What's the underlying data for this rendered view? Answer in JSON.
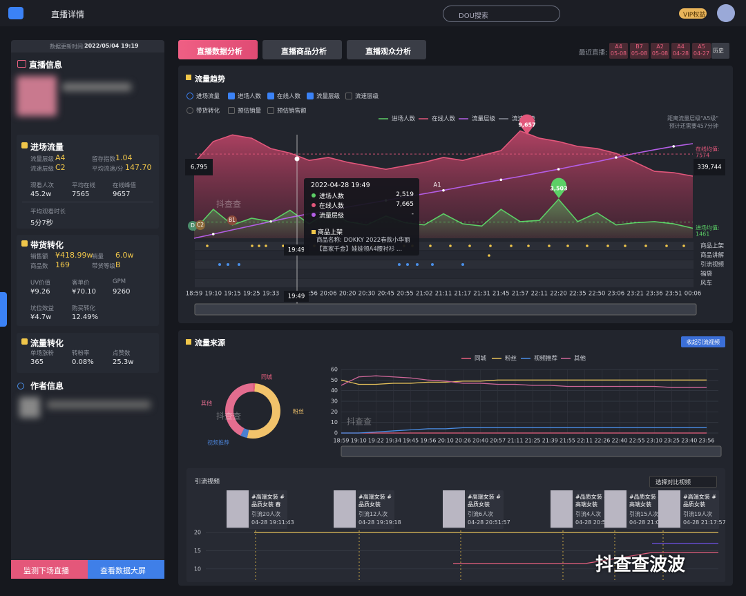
{
  "header": {
    "title": "直播详情",
    "search": "DOU搜索",
    "vip": "VIP权益"
  },
  "sidebar": {
    "update_label": "数据更新时间:",
    "update_time": "2022/05/04 19:19",
    "live_title": "直播信息",
    "traffic": {
      "title": "进场流量",
      "metrics": [
        {
          "label": "流量层级",
          "value": "A4"
        },
        {
          "label": "留存指数",
          "value": "1.04"
        },
        {
          "label": "流速层级",
          "value": "C2"
        },
        {
          "label": "平均流速/分",
          "value": "147.70"
        }
      ],
      "stats": [
        {
          "label": "观看人次",
          "value": "45.2w"
        },
        {
          "label": "平均在线",
          "value": "7565"
        },
        {
          "label": "在线峰值",
          "value": "9657"
        },
        {
          "label": "平均观看时长",
          "value": "5分7秒"
        }
      ]
    },
    "sales": {
      "title": "带货转化",
      "metrics": [
        {
          "label": "销售额",
          "value": "¥418.99w"
        },
        {
          "label": "销量",
          "value": "6.0w"
        },
        {
          "label": "商品数",
          "value": "169"
        },
        {
          "label": "带货等级",
          "value": "B"
        }
      ],
      "stats": [
        {
          "label": "UV价值",
          "value": "¥9.26"
        },
        {
          "label": "客单价",
          "value": "¥70.10"
        },
        {
          "label": "GPM",
          "value": "9260"
        },
        {
          "label": "坑位效益",
          "value": "¥4.7w"
        },
        {
          "label": "购买转化",
          "value": "12.49%"
        }
      ]
    },
    "conversion": {
      "title": "流量转化",
      "stats": [
        {
          "label": "单场涨粉",
          "value": "365"
        },
        {
          "label": "转粉率",
          "value": "0.08%"
        },
        {
          "label": "点赞数",
          "value": "25.3w"
        }
      ]
    },
    "author_title": "作者信息",
    "buttons": [
      "监测下场直播",
      "查看数据大屏"
    ]
  },
  "tabs": [
    "直播数据分析",
    "直播商品分析",
    "直播观众分析"
  ],
  "recent": {
    "label": "最近直播:",
    "items": [
      {
        "level": "A4",
        "date": "05-08"
      },
      {
        "level": "B7",
        "date": "05-08"
      },
      {
        "level": "A2",
        "date": "05-08"
      },
      {
        "level": "A4",
        "date": "04-28"
      },
      {
        "level": "A5",
        "date": "04-27"
      }
    ],
    "history": "历史"
  },
  "trend": {
    "title": "流量趋势",
    "options": [
      "进场流量",
      "进场人数",
      "在线人数",
      "流量层级",
      "流速层级",
      "带货转化",
      "预估销量",
      "预估销售额"
    ],
    "checked": [
      true,
      true,
      true,
      true,
      false,
      false,
      false,
      false
    ],
    "hint": [
      "距离流量层级\"A5级\"",
      "预计还需要457分钟"
    ],
    "chart": {
      "type": "line",
      "categories": [
        "18:59",
        "19:10",
        "19:15",
        "19:25",
        "19:33",
        null,
        "19:56",
        "20:06",
        "20:20",
        "20:30",
        "20:45",
        "20:55",
        "21:02",
        "21:11",
        "21:17",
        "21:31",
        "21:45",
        "21:57",
        "22:11",
        "22:20",
        "22:35",
        "22:50",
        "23:06",
        "23:21",
        "23:36",
        "23:51",
        "00:06"
      ],
      "series": [
        {
          "name": "进场人数",
          "color": "#5ccf66",
          "values": [
            700,
            2600,
            1200,
            1800,
            1500,
            2519,
            1300,
            2400,
            1500,
            1200,
            2000,
            1400,
            1200,
            2200,
            1300,
            1100,
            2600,
            1500,
            1600,
            3503,
            1500,
            2300,
            1200,
            1400,
            1500,
            1300,
            900
          ]
        },
        {
          "name": "在线人数",
          "color": "#e2577b",
          "values": [
            6795,
            8700,
            9300,
            9000,
            8070,
            7665,
            7000,
            7270,
            6830,
            6520,
            6200,
            6520,
            6830,
            7270,
            7000,
            7450,
            7890,
            9657,
            9000,
            8700,
            8260,
            8070,
            7640,
            6830,
            6020,
            5900,
            5590
          ]
        },
        {
          "name": "流量层级",
          "color": "#b45ee6",
          "axis": "y2",
          "values": [
            0,
            15000,
            30000,
            45000,
            60000,
            75000,
            88000,
            100000,
            112000,
            124000,
            136000,
            148000,
            160000,
            172000,
            185000,
            198000,
            210000,
            222000,
            235000,
            248000,
            262000,
            275000,
            290000,
            305000,
            318000,
            330000,
            339744
          ]
        }
      ],
      "extra_legend": {
        "name": "流速层级",
        "color": "#8a8f99"
      },
      "start_label": "6,795",
      "end_label": "339,744",
      "online_avg_label": "在线均值:",
      "online_avg": 7574,
      "enter_avg_label": "进场均值:",
      "enter_avg": 1461,
      "peak_online": "9,657",
      "peak_enter": "3,503",
      "levels": [
        "D",
        "C2",
        "B1",
        "A1"
      ],
      "rows": [
        "商品上架",
        "商品讲解",
        "引流视频",
        "福袋",
        "风车"
      ],
      "cursor": "19:49"
    },
    "tooltip": {
      "time": "2022-04-28 19:49",
      "rows": [
        {
          "name": "进场人数",
          "value": "2,519"
        },
        {
          "name": "在线人数",
          "value": "7,665"
        },
        {
          "name": "流量层级",
          "value": "-"
        }
      ],
      "product_title": "商品上架",
      "product_text": "商品名称: DOKKY 2022春款小华丽【富家千金】娃娃领A4腰衬衫 ..."
    }
  },
  "source": {
    "title": "流量来源",
    "button": "收起引流视频",
    "donut": {
      "type": "pie",
      "categories": [
        "同城",
        "粉丝",
        "视频推荐",
        "其他"
      ],
      "values": [
        1,
        52,
        4,
        43
      ],
      "colors": [
        "#e8607f",
        "#f2c36b",
        "#4a7fd0",
        "#e36d8f"
      ]
    },
    "line": {
      "type": "line",
      "x": [
        "18:59",
        "19:10",
        "19:22",
        "19:34",
        "19:45",
        "19:56",
        "20:10",
        "20:26",
        "20:40",
        "20:57",
        "21:11",
        "21:25",
        "21:39",
        "21:55",
        "22:11",
        "22:26",
        "22:40",
        "22:55",
        "23:10",
        "23:25",
        "23:40",
        "23:56"
      ],
      "ylim": [
        0,
        60
      ],
      "yticks": [
        0,
        10,
        20,
        30,
        40,
        50,
        60
      ],
      "series": [
        {
          "name": "同城",
          "color": "#e8607f",
          "values": [
            0,
            0,
            0,
            0,
            0,
            0,
            0,
            0,
            0,
            0,
            0,
            0,
            0,
            0,
            0,
            0,
            0,
            0,
            0,
            0,
            0,
            0
          ]
        },
        {
          "name": "粉丝",
          "color": "#e6c15a",
          "values": [
            50,
            46,
            46,
            47,
            47,
            48,
            48,
            49,
            49,
            50,
            50,
            50,
            50,
            50,
            50,
            50,
            50,
            50,
            50,
            50,
            50,
            50
          ]
        },
        {
          "name": "视频推荐",
          "color": "#4a8fe8",
          "values": [
            0,
            0,
            1,
            2,
            3,
            4,
            4,
            5,
            5,
            5,
            5,
            5,
            5,
            5,
            5,
            5,
            5,
            5,
            5,
            5,
            5,
            5
          ]
        },
        {
          "name": "其他",
          "color": "#d0679a",
          "values": [
            45,
            53,
            54,
            53,
            52,
            50,
            49,
            47,
            47,
            46,
            46,
            45,
            45,
            44,
            44,
            44,
            44,
            44,
            44,
            43,
            43,
            43
          ]
        }
      ]
    },
    "videos": {
      "title": "引流视频",
      "select": "选择对比视频",
      "items": [
        {
          "title": "#高端女装 #品质女装 春装...",
          "count": "引流20人次",
          "time": "04-28 19:11:43"
        },
        {
          "title": "#高端女装 #品质女装",
          "count": "引流12人次",
          "time": "04-28 19:19:18"
        },
        {
          "title": "#高端女装 #品质女装",
          "count": "引流6人次",
          "time": "04-28 20:51:57"
        },
        {
          "title": "#品质女装 #高端女装",
          "count": "引流4人次",
          "time": "04-28 20:5"
        },
        {
          "title": "#品质女装 #高端女装",
          "count": "引流15人次",
          "time": "04-28 21:0"
        },
        {
          "title": "#高端女装 #品质女装",
          "count": "引流19人次",
          "time": "04-28 21:17:57"
        }
      ],
      "chart": {
        "ylim": [
          7.5,
          21
        ],
        "yticks": [
          20,
          15,
          10
        ],
        "series": [
          {
            "color": "#e6c15a",
            "values": [
              20,
              20,
              20,
              20,
              20,
              20,
              20,
              20
            ]
          },
          {
            "color": "#e8607f",
            "values": [
              null,
              null,
              null,
              11.5,
              11.5,
              11.5,
              14.5,
              14.5
            ]
          },
          {
            "color": "#6a4fd8",
            "values": [
              null,
              null,
              null,
              null,
              null,
              null,
              17,
              17
            ]
          }
        ]
      }
    }
  },
  "watermark": "抖查查波波",
  "watermark_small": "抖查查"
}
